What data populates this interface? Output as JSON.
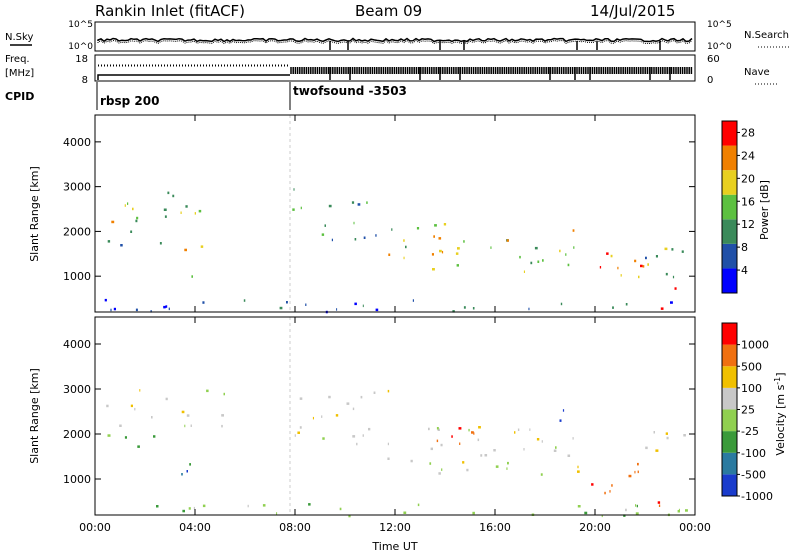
{
  "header": {
    "title": "Rankin Inlet (fitACF)",
    "beam": "Beam 09",
    "date": "14/Jul/2015"
  },
  "noise_panel": {
    "left_label": "N.Sky",
    "left_ticks": [
      "10^5",
      "10^0"
    ],
    "right_ticks": [
      "10^5",
      "10^0"
    ],
    "right_label": "N.Search"
  },
  "freq_panel": {
    "left_label_1": "Freq.",
    "left_label_2": "[MHz]",
    "left_ticks": [
      "18",
      "8"
    ],
    "right_ticks": [
      "60",
      "0"
    ],
    "right_label": "Nave"
  },
  "cpid": {
    "label": "CPID",
    "mode1": "rbsp 200",
    "mode2": "twofsound -3503"
  },
  "chart_data": [
    {
      "type": "heatmap",
      "title": "",
      "xlabel": "",
      "ylabel": "Slant Range [km]",
      "x_ticks": [
        "00:00",
        "04:00",
        "08:00",
        "12:00",
        "16:00",
        "20:00",
        "00:00"
      ],
      "y_ticks": [
        "1000",
        "2000",
        "3000",
        "4000"
      ],
      "xlim_hours": [
        0,
        24
      ],
      "ylim_km": [
        200,
        4600
      ],
      "colorbar": {
        "label": "Power [dB]",
        "ticks": [
          "4",
          "8",
          "12",
          "16",
          "20",
          "24",
          "28"
        ],
        "range": [
          0,
          30
        ],
        "colors": [
          "#0000ff",
          "#2050a8",
          "#3a8a5a",
          "#5cc040",
          "#e8d020",
          "#f08000",
          "#ff0000"
        ]
      },
      "regions": [
        {
          "t": [
            0.3,
            2.3
          ],
          "r": [
            2200,
            3000
          ],
          "v": 16
        },
        {
          "t": [
            2.4,
            5.3
          ],
          "r": [
            2200,
            2900
          ],
          "v": 15
        },
        {
          "t": [
            0.4,
            2.7
          ],
          "r": [
            1600,
            2100
          ],
          "v": 10
        },
        {
          "t": [
            3.3,
            4.3
          ],
          "r": [
            1000,
            1800
          ],
          "v": 18
        },
        {
          "t": [
            7.7,
            8.6
          ],
          "r": [
            2200,
            3000
          ],
          "v": 11
        },
        {
          "t": [
            9.0,
            11.8
          ],
          "r": [
            1800,
            2800
          ],
          "v": 12
        },
        {
          "t": [
            11.5,
            16.0
          ],
          "r": [
            1100,
            2200
          ],
          "v": 17
        },
        {
          "t": [
            16.0,
            19.5
          ],
          "r": [
            1100,
            2100
          ],
          "v": 17
        },
        {
          "t": [
            19.5,
            22.0
          ],
          "r": [
            700,
            1600
          ],
          "v": 24
        },
        {
          "t": [
            22.0,
            23.8
          ],
          "r": [
            900,
            2000
          ],
          "v": 14
        },
        {
          "t": [
            22.5,
            23.3
          ],
          "r": [
            300,
            900
          ],
          "v": 26
        },
        {
          "t": [
            0.3,
            23.8
          ],
          "r": [
            200,
            500
          ],
          "v": 7
        }
      ]
    },
    {
      "type": "heatmap",
      "title": "",
      "xlabel": "Time UT",
      "ylabel": "Slant Range [km]",
      "x_ticks": [
        "00:00",
        "04:00",
        "08:00",
        "12:00",
        "16:00",
        "20:00",
        "00:00"
      ],
      "y_ticks": [
        "1000",
        "2000",
        "3000",
        "4000"
      ],
      "xlim_hours": [
        0,
        24
      ],
      "ylim_km": [
        200,
        4600
      ],
      "colorbar": {
        "label": "Velocity [m s^-1]",
        "ticks": [
          "1000",
          "500",
          "100",
          "25",
          "-25",
          "-100",
          "-500",
          "-1000"
        ],
        "colors": [
          "#1a3ccc",
          "#2a7aa0",
          "#3a9a3a",
          "#90d050",
          "#c8c8c8",
          "#f0c000",
          "#f07010",
          "#ff0000"
        ]
      },
      "regions": [
        {
          "t": [
            0.3,
            5.3
          ],
          "r": [
            2200,
            3000
          ],
          "c": 4
        },
        {
          "t": [
            0.4,
            2.7
          ],
          "r": [
            1600,
            2100
          ],
          "c": 2
        },
        {
          "t": [
            3.3,
            4.3
          ],
          "r": [
            1000,
            1800
          ],
          "c": 1
        },
        {
          "t": [
            7.7,
            11.8
          ],
          "r": [
            1800,
            3000
          ],
          "c": 4
        },
        {
          "t": [
            11.5,
            19.5
          ],
          "r": [
            1100,
            2200
          ],
          "c": 4
        },
        {
          "t": [
            13.0,
            16.0
          ],
          "r": [
            1700,
            2200
          ],
          "c": 6
        },
        {
          "t": [
            18.2,
            19.0
          ],
          "r": [
            1800,
            2600
          ],
          "c": 0
        },
        {
          "t": [
            19.5,
            22.0
          ],
          "r": [
            700,
            1500
          ],
          "c": 6
        },
        {
          "t": [
            22.0,
            23.8
          ],
          "r": [
            1200,
            2100
          ],
          "c": 4
        },
        {
          "t": [
            22.5,
            23.3
          ],
          "r": [
            300,
            900
          ],
          "c": 6
        },
        {
          "t": [
            0.3,
            23.8
          ],
          "r": [
            200,
            500
          ],
          "c": 3
        }
      ]
    }
  ]
}
